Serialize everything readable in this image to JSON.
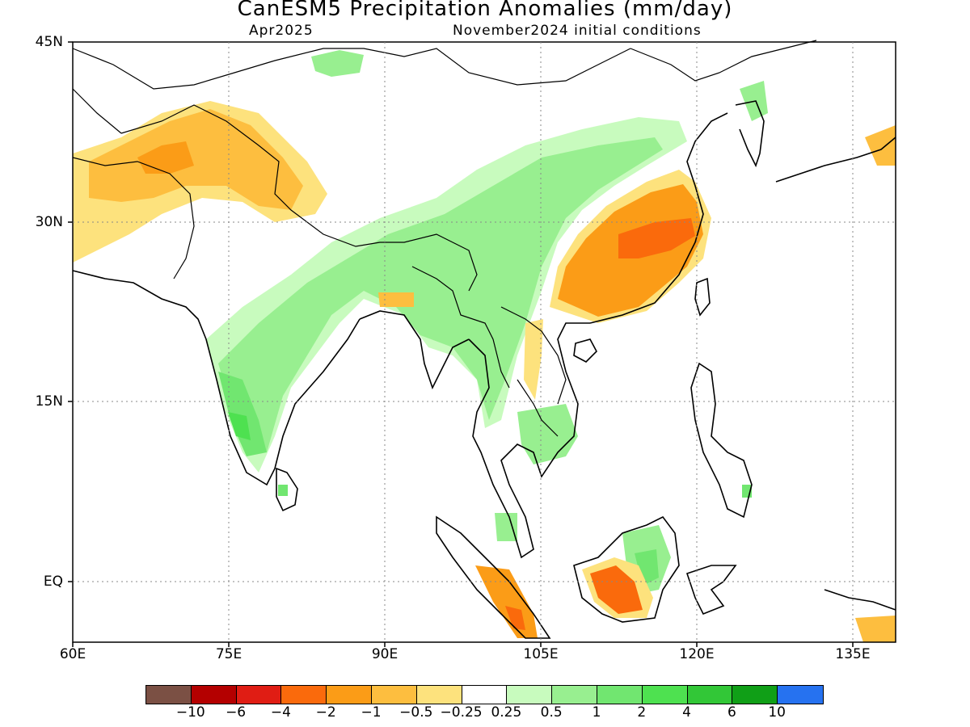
{
  "title": "CanESM5 Precipitation Anomalies (mm/day)",
  "subtitle_left": "Apr2025",
  "subtitle_right": "November2024 initial conditions",
  "y_ticks": [
    "45N",
    "30N",
    "15N",
    "EQ"
  ],
  "x_ticks": [
    "60E",
    "75E",
    "90E",
    "105E",
    "120E",
    "135E"
  ],
  "colorbar": {
    "colors": [
      "#7b5044",
      "#b40000",
      "#e01d14",
      "#fa6a0c",
      "#fb9c17",
      "#fdbe3f",
      "#fde27d",
      "#ffffff",
      "#c8fbbe",
      "#98ef90",
      "#71e670",
      "#4ee150",
      "#32c737",
      "#109f17",
      "#2672f0"
    ],
    "labels": [
      "−10",
      "−6",
      "−4",
      "−2",
      "−1",
      "−0.5",
      "−0.25",
      "0.25",
      "0.5",
      "1",
      "2",
      "4",
      "6",
      "10"
    ]
  }
}
